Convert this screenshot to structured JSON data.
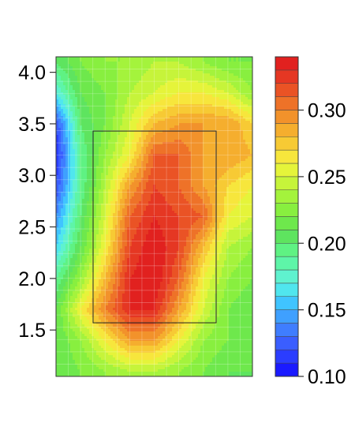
{
  "chart_data": {
    "type": "heatmap",
    "title": "",
    "xlabel": "",
    "ylabel": "",
    "ylim": [
      1.05,
      4.15
    ],
    "yticks": [
      1.5,
      2.0,
      2.5,
      3.0,
      3.5,
      4.0
    ],
    "ytick_labels": [
      "1.5",
      "2.0",
      "2.5",
      "3.0",
      "3.5",
      "4.0"
    ],
    "grid": true,
    "colorbar": {
      "range": [
        0.1,
        0.34
      ],
      "ticks": [
        0.1,
        0.15,
        0.2,
        0.25,
        0.3
      ],
      "tick_labels": [
        "0.10",
        "0.15",
        "0.20",
        "0.25",
        "0.30"
      ],
      "levels": 24,
      "colors": [
        "#1a1aff",
        "#2b3dff",
        "#3a5eff",
        "#3f7dff",
        "#3fa0ff",
        "#40c4ff",
        "#50e6ee",
        "#5ff2cf",
        "#5ef5a8",
        "#5ff283",
        "#5ee45f",
        "#6ee84c",
        "#88ef3f",
        "#a4f33c",
        "#c6f43a",
        "#e5f43a",
        "#f7e63c",
        "#f7ca34",
        "#f5ae2e",
        "#f2922b",
        "#ee7228",
        "#ea5325",
        "#e53723",
        "#e1211f"
      ]
    },
    "strike_zone": {
      "y_bottom": 1.57,
      "y_top": 3.43
    },
    "grid_values": {
      "rows_y": [
        4.1,
        3.8,
        3.5,
        3.2,
        2.9,
        2.6,
        2.3,
        2.0,
        1.7,
        1.4,
        1.1
      ],
      "cols": 9,
      "values": [
        [
          0.2,
          0.22,
          0.23,
          0.23,
          0.24,
          0.24,
          0.23,
          0.22,
          0.22
        ],
        [
          0.17,
          0.21,
          0.22,
          0.24,
          0.25,
          0.26,
          0.26,
          0.25,
          0.23
        ],
        [
          0.12,
          0.2,
          0.22,
          0.25,
          0.28,
          0.29,
          0.29,
          0.29,
          0.27
        ],
        [
          0.11,
          0.19,
          0.23,
          0.26,
          0.31,
          0.31,
          0.29,
          0.29,
          0.28
        ],
        [
          0.12,
          0.19,
          0.24,
          0.29,
          0.32,
          0.31,
          0.29,
          0.27,
          0.26
        ],
        [
          0.14,
          0.2,
          0.25,
          0.31,
          0.33,
          0.32,
          0.31,
          0.26,
          0.25
        ],
        [
          0.16,
          0.21,
          0.26,
          0.32,
          0.34,
          0.32,
          0.28,
          0.24,
          0.23
        ],
        [
          0.19,
          0.23,
          0.28,
          0.33,
          0.34,
          0.31,
          0.26,
          0.23,
          0.22
        ],
        [
          0.21,
          0.26,
          0.3,
          0.33,
          0.33,
          0.29,
          0.25,
          0.22,
          0.21
        ],
        [
          0.21,
          0.23,
          0.26,
          0.29,
          0.29,
          0.26,
          0.23,
          0.22,
          0.21
        ],
        [
          0.21,
          0.22,
          0.23,
          0.24,
          0.24,
          0.23,
          0.22,
          0.21,
          0.21
        ]
      ]
    }
  }
}
